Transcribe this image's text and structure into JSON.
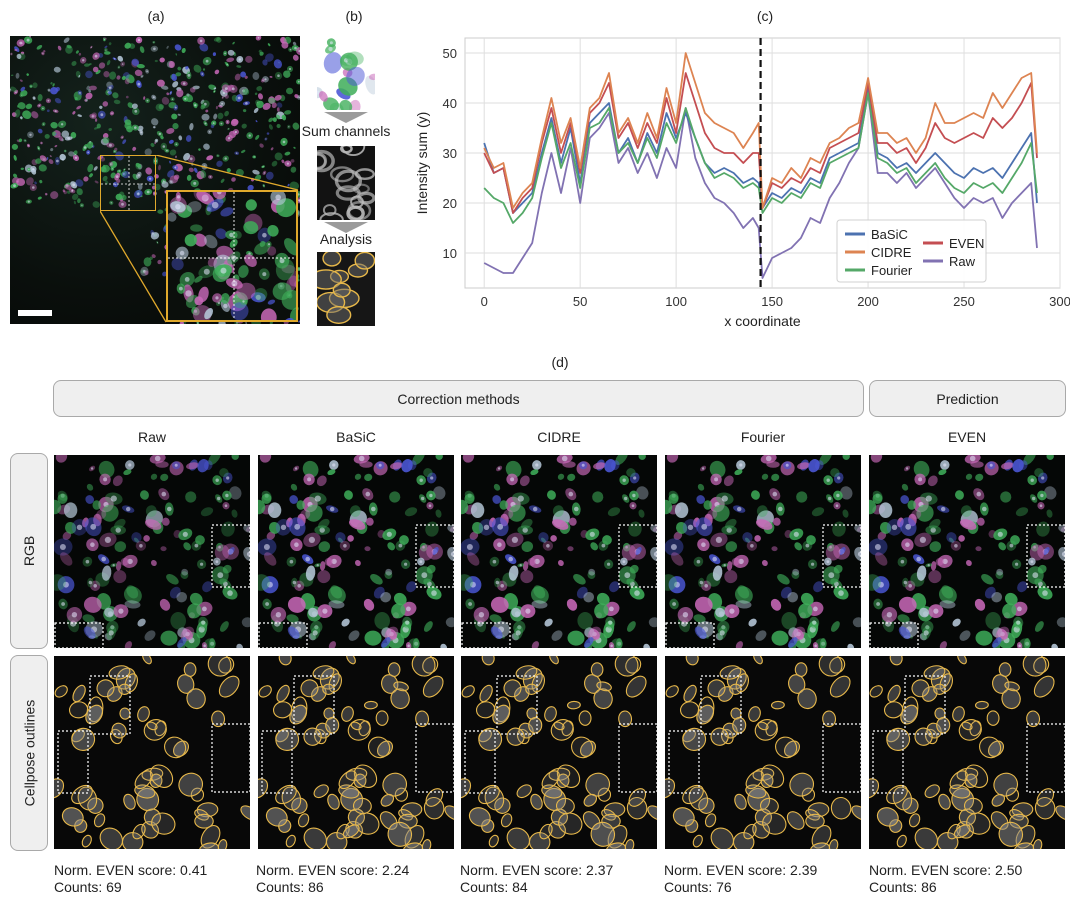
{
  "panel_labels": {
    "a": "(a)",
    "b": "(b)",
    "c": "(c)",
    "d": "(d)"
  },
  "panel_b": {
    "step1": "Sum channels",
    "step2": "Analysis"
  },
  "chart_data": {
    "type": "line",
    "xlabel": "x coordinate",
    "ylabel": "Intensity sum (y)",
    "xlim": [
      -10,
      300
    ],
    "ylim": [
      3,
      53
    ],
    "xticks": [
      0,
      50,
      100,
      150,
      200,
      250,
      300
    ],
    "yticks": [
      10,
      20,
      30,
      40,
      50
    ],
    "grid": true,
    "legend_position": "lower-right",
    "vline": {
      "x": 144,
      "style": "dashed",
      "color": "#111111"
    },
    "x": [
      0,
      5,
      10,
      15,
      20,
      25,
      30,
      35,
      40,
      45,
      50,
      55,
      60,
      65,
      70,
      75,
      80,
      85,
      90,
      95,
      100,
      105,
      110,
      115,
      120,
      125,
      130,
      135,
      140,
      143,
      145,
      150,
      155,
      160,
      165,
      170,
      175,
      180,
      185,
      190,
      195,
      200,
      205,
      210,
      215,
      220,
      225,
      230,
      235,
      240,
      245,
      250,
      255,
      260,
      265,
      270,
      275,
      280,
      285,
      288
    ],
    "series": [
      {
        "name": "BaSiC",
        "color": "#4c72b0",
        "values": [
          32,
          26,
          27,
          18,
          20,
          22,
          30,
          37,
          28,
          35,
          24,
          36,
          38,
          40,
          30,
          33,
          28,
          34,
          30,
          38,
          33,
          38,
          33,
          28,
          26,
          27,
          26,
          24,
          25,
          24,
          19,
          22,
          21,
          23,
          22,
          25,
          24,
          29,
          30,
          31,
          32,
          43,
          30,
          29,
          27,
          28,
          26,
          28,
          30,
          28,
          26,
          25,
          27,
          26,
          27,
          25,
          28,
          31,
          34,
          20
        ]
      },
      {
        "name": "CIDRE",
        "color": "#dd8452",
        "values": [
          31,
          27,
          28,
          19,
          22,
          24,
          33,
          41,
          32,
          37,
          27,
          39,
          41,
          46,
          34,
          37,
          32,
          38,
          33,
          43,
          36,
          50,
          44,
          38,
          36,
          35,
          34,
          31,
          34,
          36,
          19,
          25,
          24,
          27,
          25,
          29,
          28,
          32,
          33,
          35,
          36,
          45,
          34,
          34,
          32,
          33,
          30,
          33,
          40,
          36,
          36,
          37,
          38,
          37,
          42,
          39,
          42,
          45,
          46,
          30
        ]
      },
      {
        "name": "Fourier",
        "color": "#55a868",
        "values": [
          23,
          21,
          20,
          16,
          18,
          21,
          29,
          36,
          27,
          32,
          23,
          35,
          36,
          39,
          30,
          32,
          28,
          33,
          29,
          36,
          32,
          39,
          33,
          28,
          25,
          26,
          25,
          23,
          24,
          23,
          18,
          21,
          20,
          22,
          21,
          24,
          23,
          28,
          29,
          30,
          31,
          42,
          29,
          28,
          26,
          27,
          24,
          26,
          28,
          25,
          23,
          22,
          24,
          23,
          24,
          22,
          25,
          28,
          32,
          22
        ]
      },
      {
        "name": "EVEN",
        "color": "#c44e52",
        "values": [
          30,
          26,
          27,
          18,
          21,
          23,
          32,
          39,
          30,
          36,
          26,
          38,
          40,
          44,
          33,
          36,
          31,
          36,
          32,
          41,
          34,
          46,
          40,
          34,
          31,
          30,
          30,
          28,
          30,
          30,
          19,
          24,
          23,
          25,
          24,
          27,
          26,
          31,
          32,
          33,
          34,
          44,
          32,
          32,
          30,
          31,
          28,
          31,
          36,
          33,
          32,
          33,
          34,
          33,
          37,
          35,
          37,
          40,
          44,
          29
        ]
      },
      {
        "name": "Raw",
        "color": "#8172b2",
        "values": [
          8,
          7,
          6,
          6,
          9,
          12,
          22,
          30,
          22,
          31,
          20,
          33,
          35,
          38,
          28,
          31,
          26,
          30,
          25,
          31,
          27,
          39,
          29,
          24,
          21,
          20,
          18,
          15,
          17,
          15,
          5,
          9,
          10,
          11,
          13,
          17,
          16,
          21,
          24,
          28,
          31,
          42,
          26,
          26,
          24,
          26,
          23,
          25,
          27,
          24,
          21,
          19,
          21,
          20,
          21,
          17,
          20,
          22,
          24,
          11
        ]
      }
    ]
  },
  "panel_d": {
    "headers": {
      "correction": "Correction methods",
      "prediction": "Prediction"
    },
    "rows": {
      "rgb": "RGB",
      "outlines": "Cellpose outlines"
    },
    "columns": [
      {
        "title": "Raw",
        "score_label": "Norm. EVEN score: 0.41",
        "counts_label": "Counts: 69"
      },
      {
        "title": "BaSiC",
        "score_label": "Norm. EVEN score: 2.24",
        "counts_label": "Counts: 86"
      },
      {
        "title": "CIDRE",
        "score_label": "Norm. EVEN score: 2.37",
        "counts_label": "Counts: 84"
      },
      {
        "title": "Fourier",
        "score_label": "Norm. EVEN score: 2.39",
        "counts_label": "Counts: 76"
      },
      {
        "title": "EVEN",
        "score_label": "Norm. EVEN score:  2.50",
        "counts_label": "Counts: 86"
      }
    ]
  },
  "colors": {
    "highlight": "#e0a92c",
    "outline": "#e7b84a",
    "cell_green": "#3fae5a",
    "cell_magenta": "#c868b8",
    "cell_blue": "#4b57d6"
  }
}
